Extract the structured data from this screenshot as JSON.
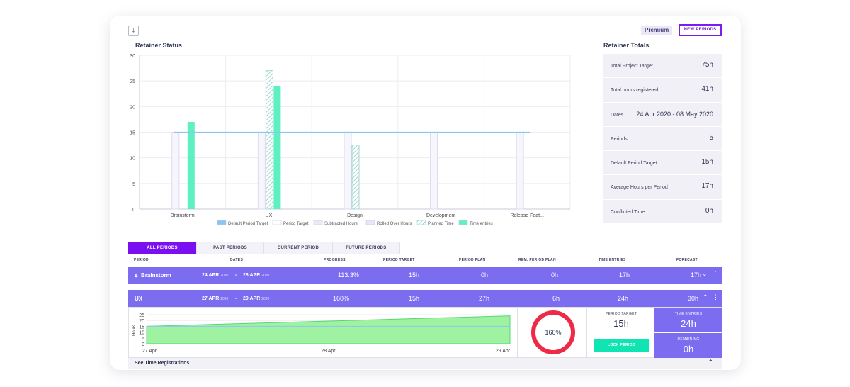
{
  "header": {
    "download_icon": "download-icon",
    "premium_label": "Premium",
    "new_periods_label": "NEW PERIODS"
  },
  "status": {
    "title": "Retainer Status"
  },
  "chart_data": {
    "type": "bar",
    "title": "Retainer Status",
    "categories": [
      "Brainstorm",
      "UX",
      "Design",
      "Development",
      "Release Feat..."
    ],
    "ylim": [
      0,
      30
    ],
    "yticks": [
      0,
      5,
      10,
      15,
      20,
      25,
      30
    ],
    "grid": true,
    "legend_placement": "bottom",
    "default_period_target": 15,
    "series": [
      {
        "name": "Period Target",
        "values": [
          15,
          15,
          15,
          15,
          15
        ],
        "color": "#f7f6fc"
      },
      {
        "name": "Planned Time",
        "values": [
          0,
          27,
          12.5,
          0,
          0
        ],
        "color": "#9fd8d0"
      },
      {
        "name": "Time entries",
        "values": [
          17,
          24,
          0,
          0,
          0
        ],
        "color": "#5ef0c1"
      }
    ],
    "legend": [
      "Default Period Target",
      "Period Target",
      "Subtracted Hours",
      "Rolled Over Hours",
      "Planned Time",
      "Time entries"
    ],
    "legend_colors": [
      "#8cc6f0",
      "#ffffff",
      "#ebe9f5",
      "#e8e6f8",
      "#e0f7f2",
      "#5ef0c1"
    ]
  },
  "totals": {
    "title": "Retainer Totals",
    "rows": [
      {
        "label": "Total Project Target",
        "value": "75h"
      },
      {
        "label": "Total hours registered",
        "value": "41h"
      },
      {
        "label": "Dates",
        "value": "24 Apr 2020 - 08 May 2020"
      },
      {
        "label": "Periods",
        "value": "5"
      },
      {
        "label": "Default Period Target",
        "value": "15h"
      },
      {
        "label": "Average Hours per Period",
        "value": "17h"
      },
      {
        "label": "Conflicted Time",
        "value": "0h"
      }
    ]
  },
  "tabs": [
    "ALL PERIODS",
    "PAST PERIODS",
    "CURRENT PERIOD",
    "FUTURE PERIODS"
  ],
  "columns": [
    "PERIOD",
    "DATES",
    "PROGRESS",
    "PERIOD TARGET",
    "PERIOD PLAN",
    "REM. PERIOD PLAN",
    "TIME ENTRIES",
    "FORECAST"
  ],
  "periods": [
    {
      "name": "Brainstorm",
      "start": "24 APR",
      "start_year": "2020",
      "end": "26 APR",
      "end_year": "2020",
      "sep": "-",
      "progress": "113.3%",
      "target": "15h",
      "plan": "0h",
      "rem_plan": "0h",
      "entries": "17h",
      "forecast": "17h"
    },
    {
      "name": "UX",
      "start": "27 APR",
      "start_year": "2020",
      "end": "29 APR",
      "end_year": "2020",
      "sep": "-",
      "progress": "160%",
      "target": "15h",
      "plan": "27h",
      "rem_plan": "6h",
      "entries": "24h",
      "forecast": "30h"
    }
  ],
  "detail": {
    "y_label": "Hours",
    "y_ticks": [
      "25",
      "20",
      "15",
      "10",
      "5",
      "0"
    ],
    "x_ticks": [
      "27 Apr",
      "28 Apr",
      "29 Apr"
    ],
    "progress": "160%",
    "period_target_label": "PERIOD TARGET",
    "period_target_value": "15h",
    "time_entries_label": "TIME ENTRIES",
    "time_entries_value": "24h",
    "remaining_label": "REMAINING",
    "remaining_value": "0h",
    "lock_label": "LOCK PERIOD"
  },
  "see_registrations": "See Time Registrations"
}
